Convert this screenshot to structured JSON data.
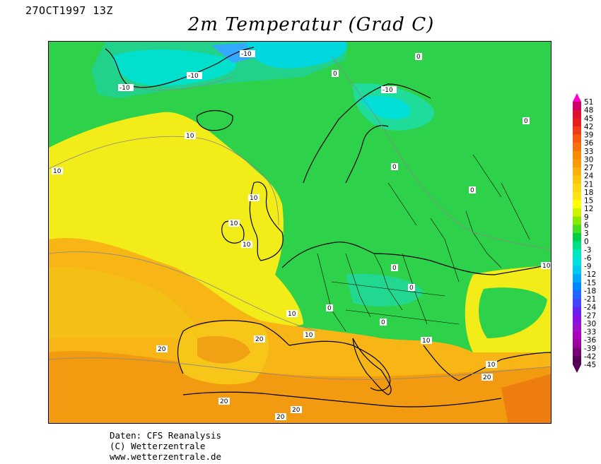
{
  "header": {
    "date_label": "27OCT1997 13Z",
    "title": "2m Temperatur (Grad C)"
  },
  "map": {
    "contour_labels": [
      "-10",
      "0",
      "10",
      "20"
    ]
  },
  "legend": {
    "ticks": [
      "51",
      "48",
      "45",
      "42",
      "39",
      "36",
      "33",
      "30",
      "27",
      "24",
      "21",
      "18",
      "15",
      "12",
      "9",
      "6",
      "3",
      "0",
      "-3",
      "-6",
      "-9",
      "-12",
      "-15",
      "-18",
      "-21",
      "-24",
      "-27",
      "-30",
      "-33",
      "-36",
      "-39",
      "-42",
      "-45"
    ],
    "colors": [
      "#ff00cc",
      "#cc0066",
      "#dd1133",
      "#e81e1e",
      "#f03b1b",
      "#f55a14",
      "#f7700f",
      "#f88a0a",
      "#fa9c0a",
      "#fbb10d",
      "#fcc510",
      "#fdd812",
      "#fee414",
      "#ffff00",
      "#ccf200",
      "#88e800",
      "#44dd22",
      "#00cc44",
      "#00dd88",
      "#00e8bb",
      "#00e0e0",
      "#00c8f0",
      "#00a8f8",
      "#0088ff",
      "#2266ff",
      "#4444ff",
      "#6622ee",
      "#8811dd",
      "#9911cc",
      "#aa00bb",
      "#990099",
      "#770077",
      "#550055"
    ]
  },
  "credits": {
    "line1": "Daten: CFS Reanalysis",
    "line2": "(C) Wetterzentrale",
    "line3": "www.wetterzentrale.de"
  }
}
